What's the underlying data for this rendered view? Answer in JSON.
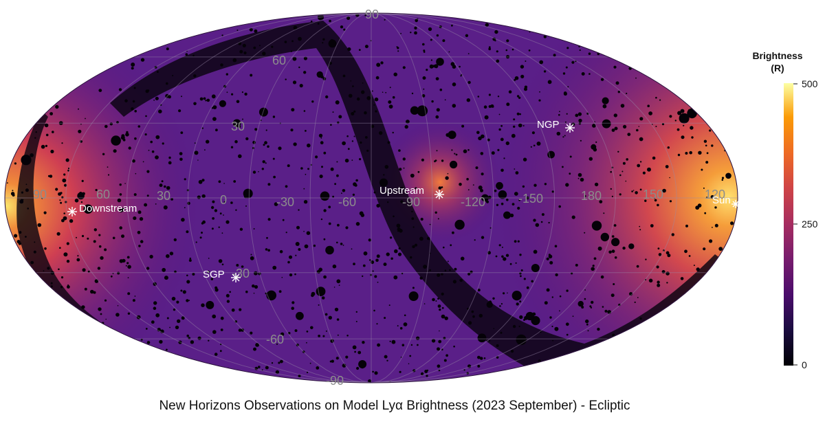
{
  "chart_data": {
    "type": "heatmap",
    "projection": "mollweide",
    "title": "New Horizons Observations on Model Lyα Brightness (2023 September) - Ecliptic",
    "colorbar": {
      "title_line1": "Brightness",
      "title_line2": "(R)",
      "range": [
        0,
        500
      ],
      "ticks": [
        "500",
        "250",
        "0"
      ],
      "colormap": "inferno"
    },
    "longitude_labels": [
      "90",
      "60",
      "30",
      "0",
      "-30",
      "-60",
      "-90",
      "-120",
      "-150",
      "180",
      "150",
      "120"
    ],
    "latitude_labels": [
      "90",
      "60",
      "30",
      "-30",
      "-60",
      "-90"
    ],
    "landmarks": [
      {
        "name": "Downstream"
      },
      {
        "name": "Upstream"
      },
      {
        "name": "NGP"
      },
      {
        "name": "SGP"
      },
      {
        "name": "Sun"
      }
    ]
  }
}
